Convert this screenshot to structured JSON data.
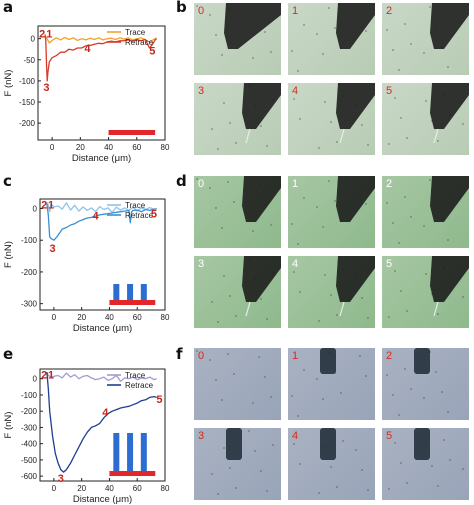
{
  "panel_letters": {
    "a": "a",
    "b": "b",
    "c": "c",
    "d": "d",
    "e": "e",
    "f": "f"
  },
  "chart_data": [
    {
      "panel": "a",
      "type": "line",
      "ylabel": "F (nN)",
      "xlabel": "Distance (μm)",
      "xlim": [
        -10,
        80
      ],
      "xticks": [
        0,
        20,
        40,
        60,
        80
      ],
      "ylim": [
        -240,
        30
      ],
      "yticks": [
        0,
        -50,
        -100,
        -150,
        -200
      ],
      "legend": "top-right",
      "series": [
        {
          "name": "Trace",
          "color": "#f5a02a",
          "x": [
            -5,
            -4,
            -2,
            0,
            3,
            6,
            9,
            12,
            15,
            18,
            21,
            24,
            27,
            30,
            33,
            36,
            39,
            42,
            45,
            48,
            51,
            54,
            57,
            60,
            63,
            66,
            69,
            72,
            74
          ],
          "y": [
            8,
            2,
            -10,
            -4,
            2,
            -3,
            3,
            -2,
            2,
            -4,
            0,
            -3,
            1,
            -2,
            2,
            -3,
            0,
            1,
            -2,
            2,
            -1,
            2,
            -3,
            0,
            2,
            -2,
            -8,
            -2,
            2
          ]
        },
        {
          "name": "Retrace",
          "color": "#d83a2a",
          "x": [
            -5,
            -4.5,
            -4,
            -3.5,
            -3,
            -2,
            0,
            3,
            6,
            9,
            12,
            15,
            18,
            21,
            24,
            27,
            30,
            33,
            36,
            39,
            42,
            45,
            48,
            51,
            54,
            57,
            60,
            63,
            66,
            69,
            71,
            73,
            74
          ],
          "y": [
            10,
            -5,
            -60,
            -100,
            -80,
            -55,
            -45,
            -40,
            -32,
            -32,
            -25,
            -27,
            -22,
            -22,
            -17,
            -16,
            -13,
            -11,
            -12,
            -8,
            -6,
            -8,
            -5,
            -5,
            -3,
            -6,
            -2,
            -5,
            -2,
            -22,
            -14,
            -3,
            0
          ]
        }
      ],
      "annotations": [
        {
          "label": "1",
          "x": -2,
          "y": 12
        },
        {
          "label": "2",
          "x": -7,
          "y": 12
        },
        {
          "label": "3",
          "x": -4,
          "y": -115
        },
        {
          "label": "4",
          "x": 25,
          "y": -22
        },
        {
          "label": "5",
          "x": 71,
          "y": -28
        }
      ]
    },
    {
      "panel": "c",
      "type": "line",
      "ylabel": "F (nN)",
      "xlabel": "Distance (μm)",
      "xlim": [
        -10,
        80
      ],
      "xticks": [
        0,
        20,
        40,
        60,
        80
      ],
      "ylim": [
        -320,
        30
      ],
      "yticks": [
        0,
        -100,
        -200,
        -300
      ],
      "legend": "top-right",
      "series": [
        {
          "name": "Trace",
          "color": "#8fc3ea",
          "x": [
            -5,
            -4,
            -3,
            -2,
            0,
            3,
            6,
            9,
            12,
            15,
            18,
            21,
            24,
            27,
            30,
            33,
            36,
            39,
            42,
            45,
            48,
            51,
            54,
            57,
            60,
            63,
            66,
            69,
            72,
            74
          ],
          "y": [
            20,
            10,
            -10,
            15,
            5,
            8,
            -2,
            18,
            -5,
            10,
            -8,
            5,
            -6,
            2,
            -10,
            6,
            -3,
            2,
            -12,
            4,
            -5,
            2,
            -6,
            4,
            -8,
            2,
            -3,
            3,
            -2,
            0
          ]
        },
        {
          "name": "Retrace",
          "color": "#3a8fd0",
          "x": [
            -5,
            -4,
            -3,
            -2,
            0,
            2,
            4,
            6,
            9,
            12,
            15,
            18,
            21,
            24,
            27,
            30,
            33,
            36,
            39,
            42,
            45,
            48,
            51,
            54,
            55,
            56,
            57,
            60,
            63,
            66,
            69,
            72,
            74
          ],
          "y": [
            15,
            -20,
            -90,
            -95,
            -100,
            -90,
            -78,
            -65,
            -60,
            -52,
            -48,
            -40,
            -35,
            -30,
            -28,
            -24,
            -20,
            -18,
            -16,
            -14,
            -12,
            -10,
            -8,
            -6,
            -45,
            -10,
            -6,
            -5,
            -10,
            -3,
            -6,
            -2,
            -2
          ]
        }
      ],
      "annotations": [
        {
          "label": "1",
          "x": -2,
          "y": 12
        },
        {
          "label": "2",
          "x": -7,
          "y": 12
        },
        {
          "label": "3",
          "x": -1,
          "y": -125
        },
        {
          "label": "4",
          "x": 30,
          "y": -22
        },
        {
          "label": "5",
          "x": 72,
          "y": -15
        }
      ]
    },
    {
      "panel": "e",
      "type": "line",
      "ylabel": "F (nN)",
      "xlabel": "Distance (μm)",
      "xlim": [
        -10,
        80
      ],
      "xticks": [
        0,
        20,
        40,
        60,
        80
      ],
      "ylim": [
        -630,
        60
      ],
      "yticks": [
        0,
        -100,
        -200,
        -300,
        -400,
        -500,
        -600
      ],
      "legend": "top-right",
      "series": [
        {
          "name": "Trace",
          "color": "#a79ad0",
          "x": [
            -5,
            -4,
            -2,
            0,
            3,
            6,
            9,
            12,
            15,
            18,
            21,
            24,
            27,
            30,
            33,
            36,
            39,
            42,
            45,
            48,
            51,
            54,
            57,
            60,
            63,
            66,
            69,
            72,
            74
          ],
          "y": [
            40,
            20,
            10,
            15,
            20,
            5,
            35,
            10,
            25,
            0,
            15,
            20,
            5,
            -5,
            0,
            10,
            -10,
            0,
            20,
            -15,
            5,
            0,
            10,
            -5,
            5,
            0,
            10,
            -5,
            0
          ]
        },
        {
          "name": "Retrace",
          "color": "#1d3f91",
          "x": [
            -5,
            -4,
            -3,
            -1,
            1,
            3,
            5,
            7,
            9,
            12,
            15,
            18,
            21,
            24,
            27,
            30,
            33,
            36,
            39,
            42,
            45,
            48,
            51,
            54,
            57,
            60,
            63,
            66,
            69,
            72,
            74
          ],
          "y": [
            40,
            -60,
            -200,
            -350,
            -460,
            -520,
            -560,
            -575,
            -560,
            -520,
            -470,
            -420,
            -370,
            -330,
            -300,
            -290,
            -275,
            -240,
            -215,
            -200,
            -190,
            -180,
            -175,
            -170,
            -160,
            -150,
            -135,
            -130,
            -115,
            -110,
            -115
          ]
        }
      ],
      "annotations": [
        {
          "label": "1",
          "x": -2,
          "y": 25
        },
        {
          "label": "2",
          "x": -7,
          "y": 25
        },
        {
          "label": "3",
          "x": 5,
          "y": -610
        },
        {
          "label": "4",
          "x": 37,
          "y": -205
        },
        {
          "label": "5",
          "x": 76,
          "y": -125
        }
      ]
    }
  ],
  "micrographs": {
    "b": {
      "frames": [
        "0",
        "1",
        "2",
        "3",
        "4",
        "5"
      ],
      "label_color": "#d62c1e"
    },
    "d": {
      "frames": [
        "0",
        "1",
        "2",
        "3",
        "4",
        "5"
      ],
      "label_color": "#ffffff"
    },
    "f": {
      "frames": [
        "0",
        "1",
        "2",
        "3",
        "4",
        "5"
      ],
      "label_color": "#d62c1e"
    }
  }
}
